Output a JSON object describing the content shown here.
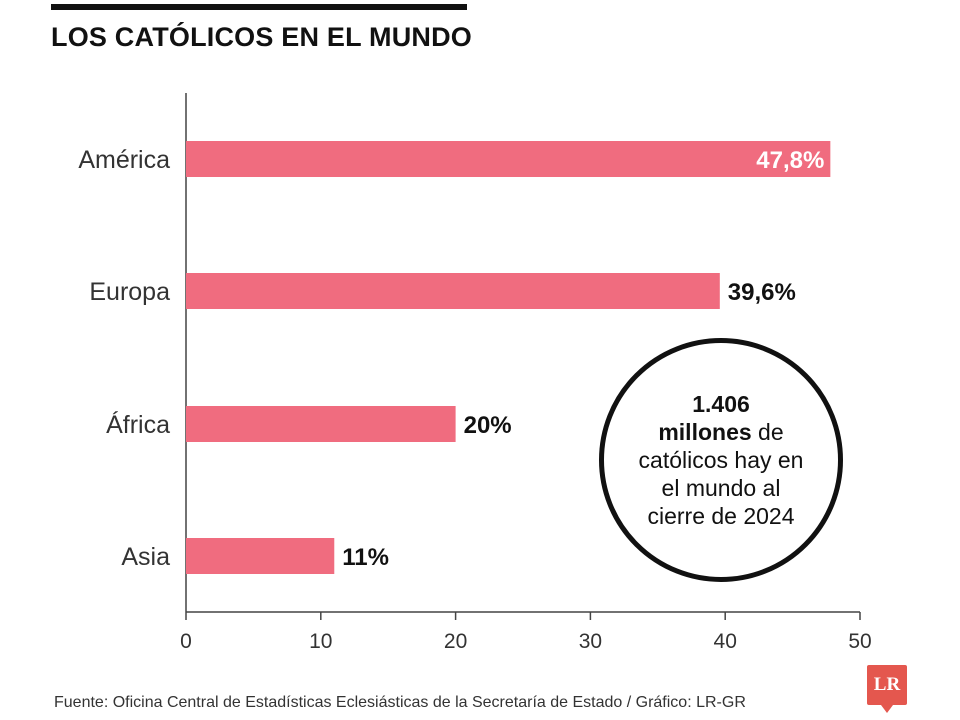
{
  "title": "LOS CATÓLICOS EN EL MUNDO",
  "chart_data": {
    "type": "bar",
    "orientation": "horizontal",
    "title": "LOS CATÓLICOS EN EL MUNDO",
    "categories": [
      "América",
      "Europa",
      "África",
      "Asia"
    ],
    "values": [
      47.8,
      39.6,
      20,
      11
    ],
    "value_labels": [
      "47,8%",
      "39,6%",
      "20%",
      "11%"
    ],
    "xlim": [
      0,
      50
    ],
    "xticks": [
      0,
      10,
      20,
      30,
      40,
      50
    ],
    "xlabel": "",
    "ylabel": "",
    "grid": false,
    "bar_color": "#f06c7f"
  },
  "callout": {
    "number": "1.406",
    "bold": "millones",
    "text_after_bold": " de",
    "line3": "católicos hay en",
    "line4": "el mundo al",
    "line5": "cierre de 2024"
  },
  "source": "Fuente: Oficina Central de Estadísticas Eclesiásticas de la Secretaría de Estado / Gráfico: LR-GR",
  "logo": "LR"
}
